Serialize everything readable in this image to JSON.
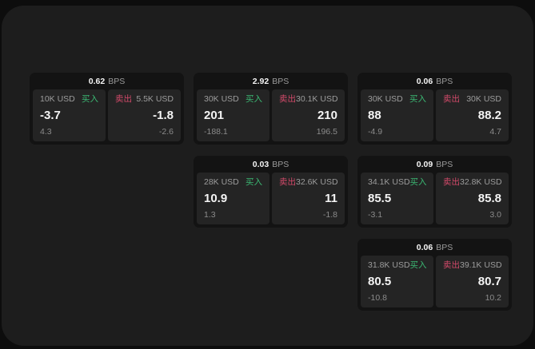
{
  "labels": {
    "bps_unit": "BPS",
    "buy": "买入",
    "sell": "卖出"
  },
  "colors": {
    "buy_green": "#3bb873",
    "sell_red": "#d34a6a",
    "page_background": "#1d1d1d",
    "card_background": "#131313",
    "panel_background": "#242424"
  },
  "cards": [
    {
      "bps": "0.62",
      "buy": {
        "amount": "10K USD",
        "price": "-3.7",
        "sub": "4.3"
      },
      "sell": {
        "amount": "5.5K USD",
        "price": "-1.8",
        "sub": "-2.6"
      }
    },
    {
      "bps": "2.92",
      "buy": {
        "amount": "30K USD",
        "price": "201",
        "sub": "-188.1"
      },
      "sell": {
        "amount": "30.1K USD",
        "price": "210",
        "sub": "196.5"
      }
    },
    {
      "bps": "0.06",
      "buy": {
        "amount": "30K USD",
        "price": "88",
        "sub": "-4.9"
      },
      "sell": {
        "amount": "30K USD",
        "price": "88.2",
        "sub": "4.7"
      }
    },
    {
      "bps": "0.03",
      "buy": {
        "amount": "28K USD",
        "price": "10.9",
        "sub": "1.3"
      },
      "sell": {
        "amount": "32.6K USD",
        "price": "11",
        "sub": "-1.8"
      }
    },
    {
      "bps": "0.09",
      "buy": {
        "amount": "34.1K USD",
        "price": "85.5",
        "sub": "-3.1"
      },
      "sell": {
        "amount": "32.8K USD",
        "price": "85.8",
        "sub": "3.0"
      }
    },
    {
      "bps": "0.06",
      "buy": {
        "amount": "31.8K USD",
        "price": "80.5",
        "sub": "-10.8"
      },
      "sell": {
        "amount": "39.1K USD",
        "price": "80.7",
        "sub": "10.2"
      }
    }
  ]
}
